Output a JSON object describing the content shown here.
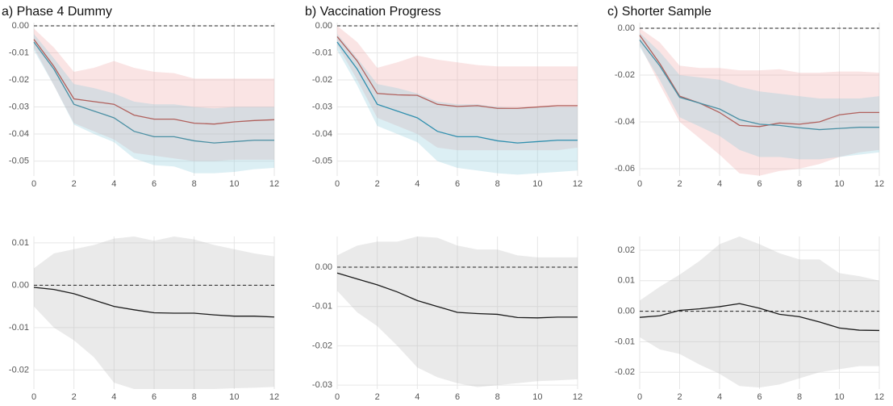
{
  "chart_data": [
    {
      "type": "line",
      "title": "a) Phase 4 Dummy",
      "x": [
        0,
        1,
        2,
        3,
        4,
        5,
        6,
        7,
        8,
        9,
        10,
        11,
        12
      ],
      "xlim": [
        0,
        12
      ],
      "xticks": [
        0,
        2,
        4,
        6,
        8,
        10,
        12
      ],
      "ylim": [
        -0.0555,
        0.0012
      ],
      "yticks": [
        {
          "value": 0,
          "label": "0.00"
        },
        -0.01,
        -0.02,
        -0.03,
        -0.04,
        -0.05
      ],
      "grid": true,
      "hline": 0,
      "series": [
        {
          "color": "#b0605c",
          "band_color": "#eea4a4",
          "values": [
            -0.005,
            -0.015,
            -0.027,
            -0.028,
            -0.029,
            -0.033,
            -0.0345,
            -0.0345,
            -0.036,
            -0.0363,
            -0.0355,
            -0.035,
            -0.0347
          ],
          "upper": [
            -0.001,
            -0.008,
            -0.017,
            -0.0155,
            -0.013,
            -0.0155,
            -0.017,
            -0.0175,
            -0.0195,
            -0.0195,
            -0.0195,
            -0.0195,
            -0.0195
          ],
          "lower": [
            -0.008,
            -0.022,
            -0.036,
            -0.039,
            -0.042,
            -0.047,
            -0.048,
            -0.049,
            -0.05,
            -0.05,
            -0.0495,
            -0.0495,
            -0.0495
          ]
        },
        {
          "color": "#4a8fa3",
          "band_color": "#8ccbdc",
          "values": [
            -0.006,
            -0.016,
            -0.029,
            -0.0315,
            -0.034,
            -0.039,
            -0.041,
            -0.041,
            -0.0425,
            -0.0433,
            -0.0428,
            -0.0423,
            -0.0423
          ],
          "upper": [
            -0.003,
            -0.012,
            -0.0215,
            -0.023,
            -0.025,
            -0.028,
            -0.029,
            -0.029,
            -0.03,
            -0.0305,
            -0.03,
            -0.03,
            -0.03
          ],
          "lower": [
            -0.009,
            -0.022,
            -0.0365,
            -0.04,
            -0.043,
            -0.049,
            -0.0515,
            -0.052,
            -0.0545,
            -0.0545,
            -0.054,
            -0.053,
            -0.0525
          ]
        }
      ]
    },
    {
      "type": "line",
      "title": "b) Vaccination Progress",
      "x": [
        0,
        1,
        2,
        3,
        4,
        5,
        6,
        7,
        8,
        9,
        10,
        11,
        12
      ],
      "xlim": [
        0,
        12
      ],
      "xticks": [
        0,
        2,
        4,
        6,
        8,
        10,
        12
      ],
      "ylim": [
        -0.0555,
        0.0012
      ],
      "yticks": [
        {
          "value": 0,
          "label": "0.00"
        },
        -0.01,
        -0.02,
        -0.03,
        -0.04,
        -0.05
      ],
      "grid": true,
      "hline": 0,
      "series": [
        {
          "color": "#b0605c",
          "band_color": "#eea4a4",
          "values": [
            -0.004,
            -0.013,
            -0.025,
            -0.0255,
            -0.0257,
            -0.029,
            -0.0298,
            -0.0295,
            -0.0305,
            -0.0305,
            -0.03,
            -0.0295,
            -0.0295
          ],
          "upper": [
            0,
            -0.006,
            -0.0155,
            -0.0135,
            -0.011,
            -0.0125,
            -0.0135,
            -0.0145,
            -0.015,
            -0.015,
            -0.015,
            -0.015,
            -0.015
          ],
          "lower": [
            -0.007,
            -0.02,
            -0.034,
            -0.037,
            -0.04,
            -0.045,
            -0.046,
            -0.046,
            -0.046,
            -0.046,
            -0.046,
            -0.046,
            -0.045
          ]
        },
        {
          "color": "#2f8fae",
          "band_color": "#8ccbdc",
          "values": [
            -0.006,
            -0.016,
            -0.029,
            -0.0315,
            -0.034,
            -0.039,
            -0.041,
            -0.041,
            -0.0425,
            -0.0433,
            -0.0428,
            -0.0423,
            -0.0423
          ],
          "upper": [
            -0.003,
            -0.012,
            -0.0215,
            -0.023,
            -0.025,
            -0.028,
            -0.029,
            -0.029,
            -0.03,
            -0.0305,
            -0.03,
            -0.03,
            -0.03
          ],
          "lower": [
            -0.009,
            -0.022,
            -0.037,
            -0.04,
            -0.043,
            -0.05,
            -0.0525,
            -0.0535,
            -0.0545,
            -0.055,
            -0.0545,
            -0.054,
            -0.0535
          ]
        }
      ]
    },
    {
      "type": "line",
      "title": "c) Shorter Sample",
      "x": [
        0,
        1,
        2,
        3,
        4,
        5,
        6,
        7,
        8,
        9,
        10,
        11,
        12
      ],
      "xlim": [
        0,
        12
      ],
      "xticks": [
        0,
        2,
        4,
        6,
        8,
        10,
        12
      ],
      "ylim": [
        -0.0631,
        0.0024
      ],
      "yticks": [
        {
          "value": 0,
          "label": "0.00"
        },
        -0.02,
        -0.04,
        -0.06
      ],
      "grid": true,
      "hline": 0,
      "series": [
        {
          "color": "#b0605c",
          "band_color": "#eea4a4",
          "values": [
            -0.003,
            -0.015,
            -0.029,
            -0.032,
            -0.036,
            -0.0415,
            -0.042,
            -0.0405,
            -0.041,
            -0.04,
            -0.037,
            -0.036,
            -0.036
          ],
          "upper": [
            0,
            -0.006,
            -0.016,
            -0.017,
            -0.017,
            -0.018,
            -0.018,
            -0.0175,
            -0.019,
            -0.019,
            -0.0185,
            -0.0185,
            -0.019
          ],
          "lower": [
            -0.007,
            -0.024,
            -0.04,
            -0.047,
            -0.054,
            -0.062,
            -0.063,
            -0.061,
            -0.06,
            -0.058,
            -0.055,
            -0.053,
            -0.052
          ]
        },
        {
          "color": "#4a8fa3",
          "band_color": "#8ccbdc",
          "values": [
            -0.005,
            -0.016,
            -0.0295,
            -0.032,
            -0.0345,
            -0.039,
            -0.041,
            -0.0415,
            -0.0425,
            -0.0433,
            -0.0428,
            -0.0423,
            -0.0423
          ],
          "upper": [
            -0.002,
            -0.01,
            -0.02,
            -0.021,
            -0.022,
            -0.025,
            -0.027,
            -0.028,
            -0.029,
            -0.03,
            -0.03,
            -0.03,
            -0.029
          ],
          "lower": [
            -0.008,
            -0.022,
            -0.038,
            -0.042,
            -0.046,
            -0.052,
            -0.055,
            -0.055,
            -0.056,
            -0.056,
            -0.055,
            -0.054,
            -0.053
          ]
        }
      ]
    },
    {
      "type": "line",
      "x": [
        0,
        1,
        2,
        3,
        4,
        5,
        6,
        7,
        8,
        9,
        10,
        11,
        12
      ],
      "xlim": [
        0,
        12
      ],
      "xticks": [
        0,
        2,
        4,
        6,
        8,
        10,
        12
      ],
      "ylim": [
        -0.0245,
        0.0115
      ],
      "yticks": [
        0.01,
        {
          "value": 0,
          "label": "0.00"
        },
        -0.01,
        -0.02
      ],
      "grid": true,
      "hline": 0,
      "series": [
        {
          "color": "#1a1a1a",
          "band_color": "#b8b8b8",
          "values": [
            -0.0005,
            -0.001,
            -0.002,
            -0.0035,
            -0.005,
            -0.0058,
            -0.0065,
            -0.0066,
            -0.0066,
            -0.007,
            -0.0073,
            -0.0073,
            -0.0075
          ],
          "upper": [
            0.004,
            0.0075,
            0.0085,
            0.0095,
            0.011,
            0.0115,
            0.0105,
            0.0115,
            0.0108,
            0.0095,
            0.0085,
            0.0075,
            0.0068
          ],
          "lower": [
            -0.005,
            -0.01,
            -0.013,
            -0.017,
            -0.023,
            -0.0245,
            -0.0245,
            -0.0245,
            -0.0245,
            -0.0245,
            -0.0243,
            -0.0242,
            -0.024
          ]
        }
      ]
    },
    {
      "type": "line",
      "x": [
        0,
        1,
        2,
        3,
        4,
        5,
        6,
        7,
        8,
        9,
        10,
        11,
        12
      ],
      "xlim": [
        0,
        12
      ],
      "xticks": [
        0,
        2,
        4,
        6,
        8,
        10,
        12
      ],
      "ylim": [
        -0.031,
        0.0078
      ],
      "yticks": [
        {
          "value": 0,
          "label": "0.00"
        },
        -0.01,
        -0.02,
        -0.03
      ],
      "grid": true,
      "hline": 0,
      "series": [
        {
          "color": "#1a1a1a",
          "band_color": "#b8b8b8",
          "values": [
            -0.0015,
            -0.003,
            -0.0045,
            -0.0063,
            -0.0085,
            -0.01,
            -0.0115,
            -0.0118,
            -0.012,
            -0.0128,
            -0.0129,
            -0.0127,
            -0.0127
          ],
          "upper": [
            0.003,
            0.0055,
            0.0065,
            0.0065,
            0.0078,
            0.0075,
            0.0055,
            0.0045,
            0.0045,
            0.003,
            0.0025,
            0.0025,
            0.0025
          ],
          "lower": [
            -0.006,
            -0.0115,
            -0.015,
            -0.02,
            -0.0255,
            -0.028,
            -0.0295,
            -0.0305,
            -0.03,
            -0.0295,
            -0.029,
            -0.0288,
            -0.0285
          ]
        }
      ]
    },
    {
      "type": "line",
      "x": [
        0,
        1,
        2,
        3,
        4,
        5,
        6,
        7,
        8,
        9,
        10,
        11,
        12
      ],
      "xlim": [
        0,
        12
      ],
      "xticks": [
        0,
        2,
        4,
        6,
        8,
        10,
        12
      ],
      "ylim": [
        -0.0255,
        0.0245
      ],
      "yticks": [
        0.02,
        0.01,
        {
          "value": 0,
          "label": "0.00"
        },
        -0.01,
        -0.02
      ],
      "grid": true,
      "hline": 0,
      "series": [
        {
          "color": "#1a1a1a",
          "band_color": "#b8b8b8",
          "values": [
            -0.002,
            -0.0015,
            0.0003,
            0.0008,
            0.0015,
            0.0025,
            0.001,
            -0.001,
            -0.0018,
            -0.0035,
            -0.0055,
            -0.0062,
            -0.0063
          ],
          "upper": [
            0.0035,
            0.008,
            0.012,
            0.0165,
            0.022,
            0.0245,
            0.022,
            0.019,
            0.017,
            0.017,
            0.0125,
            0.0115,
            0.01
          ],
          "lower": [
            -0.0085,
            -0.0125,
            -0.014,
            -0.0175,
            -0.0205,
            -0.0245,
            -0.025,
            -0.024,
            -0.022,
            -0.02,
            -0.019,
            -0.018,
            -0.018
          ]
        }
      ]
    }
  ]
}
